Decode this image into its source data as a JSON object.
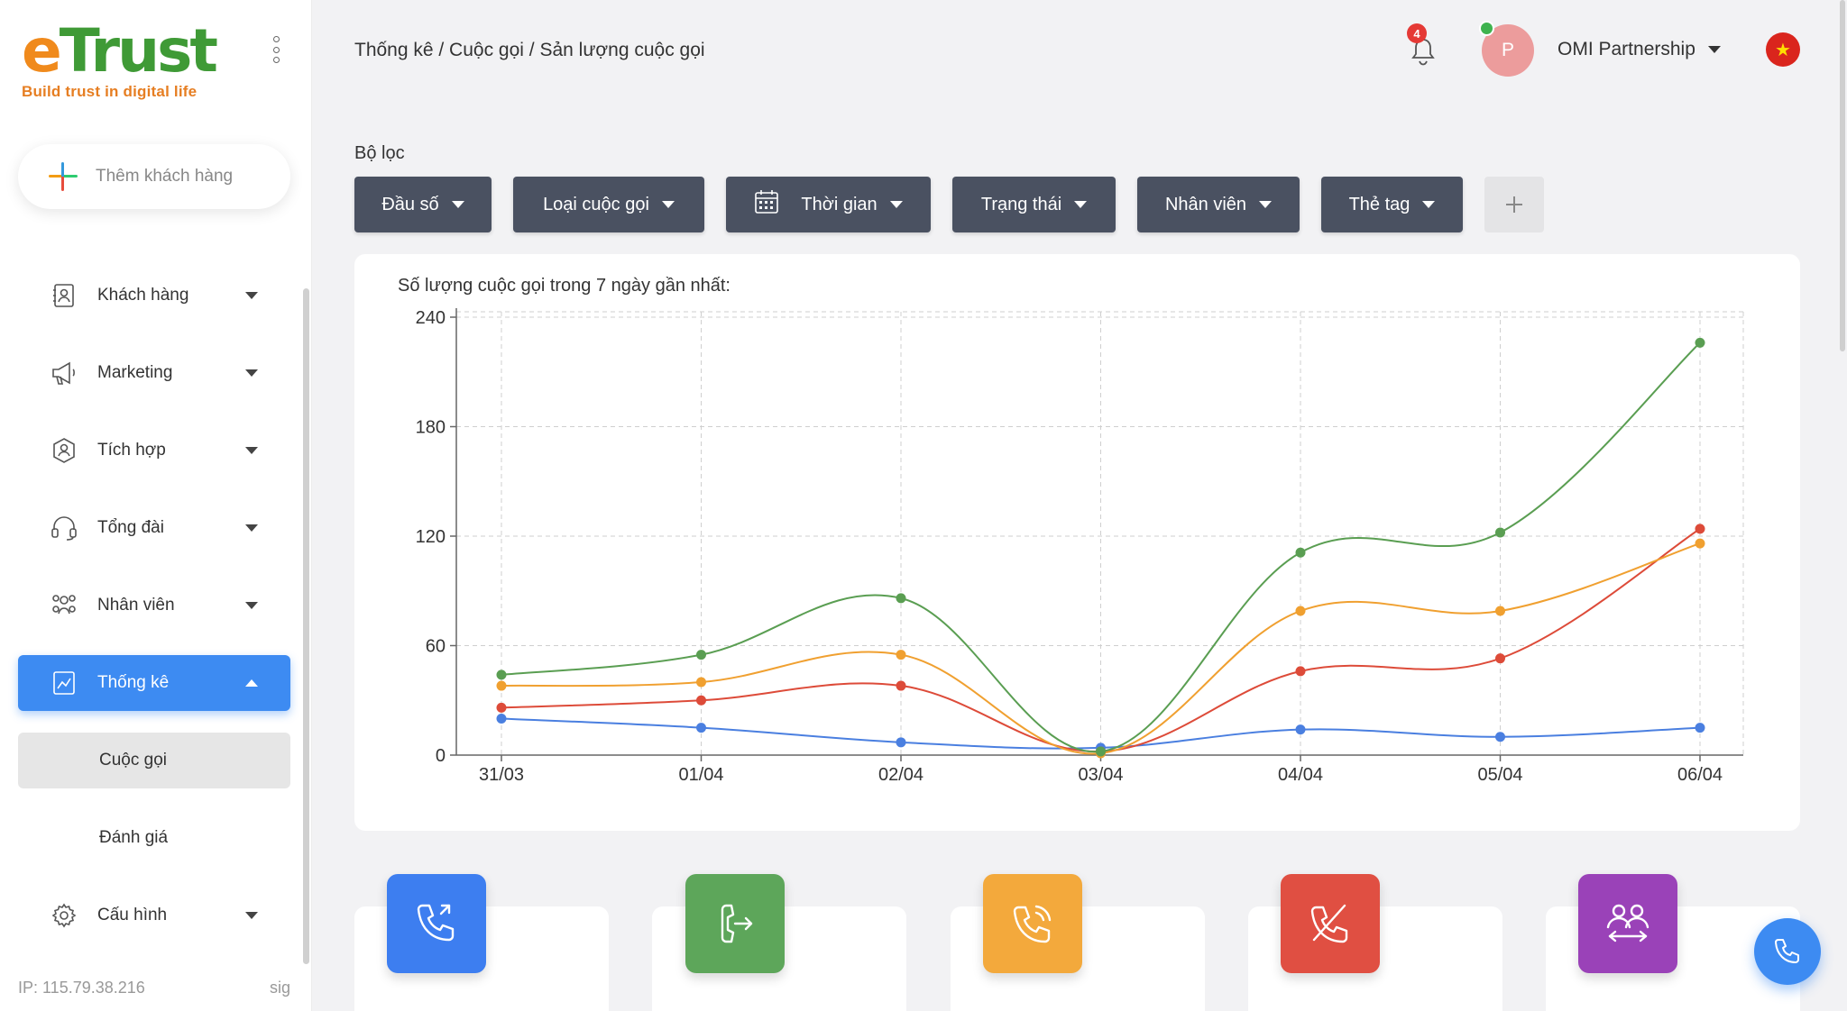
{
  "logo": {
    "main_e": "e",
    "main_rest": "Trust",
    "tagline": "Build trust in digital life"
  },
  "sidebar": {
    "add_customer_label": "Thêm khách hàng",
    "items": [
      {
        "label": "Khách hàng",
        "icon": "contacts-icon"
      },
      {
        "label": "Marketing",
        "icon": "megaphone-icon"
      },
      {
        "label": "Tích hợp",
        "icon": "integration-icon"
      },
      {
        "label": "Tổng đài",
        "icon": "headset-icon"
      },
      {
        "label": "Nhân viên",
        "icon": "team-icon"
      },
      {
        "label": "Thống kê",
        "icon": "chart-icon",
        "active": true
      }
    ],
    "sub_items": [
      {
        "label": "Cuộc gọi",
        "active": true
      },
      {
        "label": "Đánh giá"
      }
    ],
    "settings": {
      "label": "Cấu hình",
      "icon": "gear-icon"
    },
    "ip_text": "IP: 115.79.38.216",
    "sig_text": "sig"
  },
  "header": {
    "breadcrumb": "Thống kê / Cuộc gọi / Sản lượng cuộc gọi",
    "notification_count": "4",
    "avatar_initial": "P",
    "user_name": "OMI Partnership",
    "flag_symbol": "★"
  },
  "filters": {
    "title": "Bộ lọc",
    "buttons": [
      "Đầu số",
      "Loại cuộc gọi",
      "Thời gian",
      "Trạng thái",
      "Nhân viên",
      "Thẻ tag"
    ]
  },
  "chart_data": {
    "type": "line",
    "title": "Số lượng cuộc gọi trong 7 ngày gần nhất:",
    "categories": [
      "31/03",
      "01/04",
      "02/04",
      "03/04",
      "04/04",
      "05/04",
      "06/04"
    ],
    "ylim": [
      0,
      240
    ],
    "yticks": [
      0,
      60,
      120,
      180,
      240
    ],
    "grid": true,
    "series": [
      {
        "color": "#5a9e52",
        "values": [
          44,
          55,
          86,
          2,
          111,
          122,
          226
        ]
      },
      {
        "color": "#f0a030",
        "values": [
          38,
          40,
          55,
          1,
          79,
          79,
          116
        ]
      },
      {
        "color": "#dd4b39",
        "values": [
          26,
          30,
          38,
          2,
          46,
          53,
          124
        ]
      },
      {
        "color": "#4a7fe0",
        "values": [
          20,
          15,
          7,
          4,
          14,
          10,
          15
        ]
      }
    ]
  },
  "stat_cards": [
    {
      "icon": "incoming-call-icon",
      "color": "#3d7ef0"
    },
    {
      "icon": "outgoing-call-icon",
      "color": "#5da65a"
    },
    {
      "icon": "ringing-call-icon",
      "color": "#f3a93c"
    },
    {
      "icon": "missed-call-icon",
      "color": "#e04f42"
    },
    {
      "icon": "transfer-call-icon",
      "color": "#9a42b8"
    }
  ]
}
